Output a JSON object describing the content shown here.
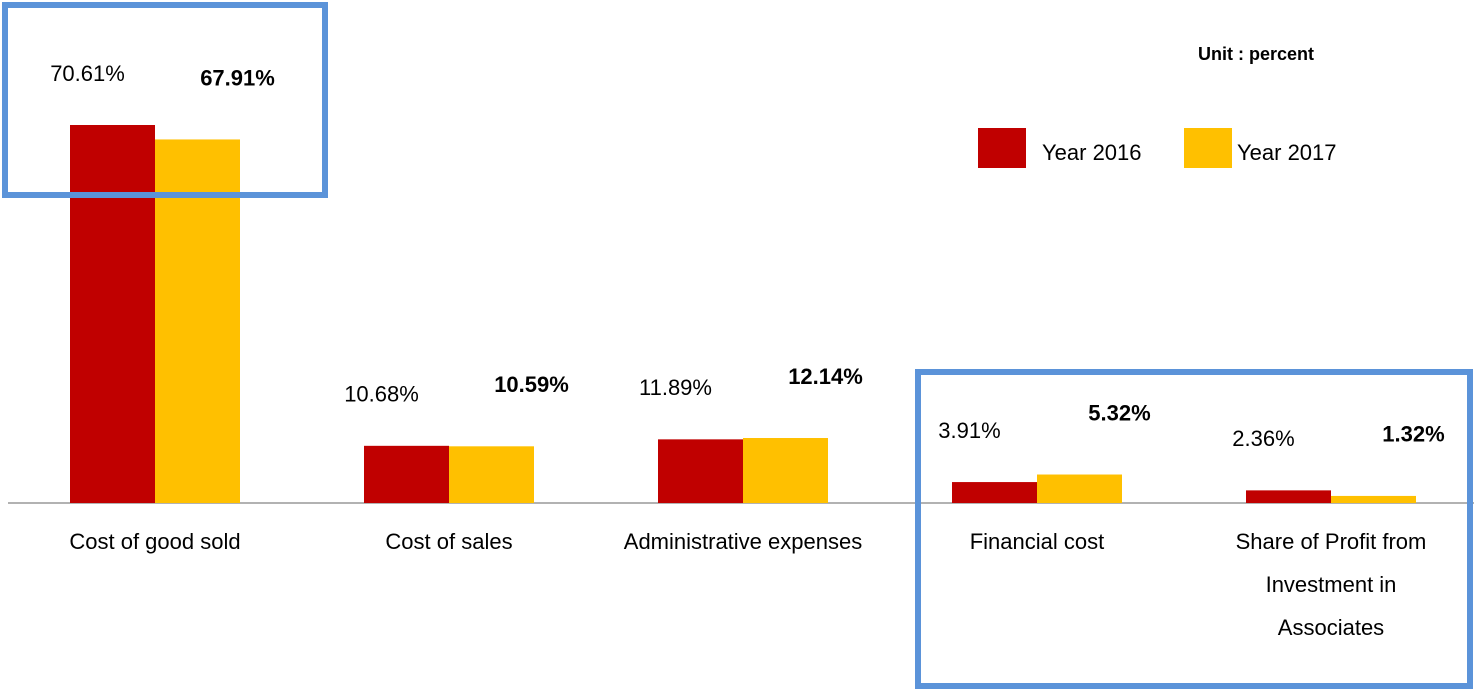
{
  "chart_data": {
    "type": "bar",
    "annotation": "Unit : percent",
    "categories": [
      "Cost of good sold",
      "Cost of sales",
      "Administrative expenses",
      "Financial cost",
      "Share of Profit from Investment in Associates"
    ],
    "series": [
      {
        "name": "Year 2016",
        "color": "#c00000",
        "values": [
          70.61,
          10.68,
          11.89,
          3.91,
          2.36
        ],
        "value_labels": [
          "70.61%",
          "10.68%",
          "11.89%",
          "3.91%",
          "2.36%"
        ]
      },
      {
        "name": "Year 2017",
        "color": "#ffc000",
        "values": [
          67.91,
          10.59,
          12.14,
          5.32,
          1.32
        ],
        "value_labels": [
          "67.91%",
          "10.59%",
          "12.14%",
          "5.32%",
          "1.32%"
        ]
      }
    ],
    "legend": "top-right"
  }
}
